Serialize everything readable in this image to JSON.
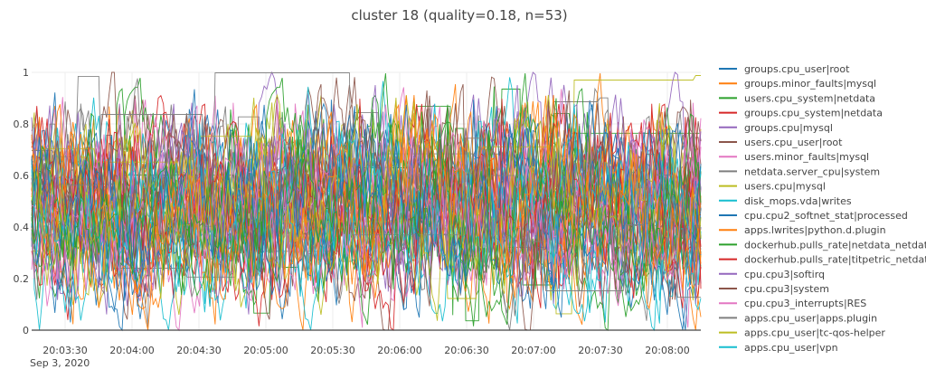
{
  "chart_data": {
    "type": "line",
    "title": "cluster 18 (quality=0.18, n=53)",
    "xlabel": "",
    "ylabel": "",
    "ylim": [
      0,
      1
    ],
    "yticks": [
      "0",
      "0.2",
      "0.4",
      "0.6",
      "0.8",
      "1"
    ],
    "xlim": [
      "20:03:15",
      "20:08:15"
    ],
    "xticks": [
      "20:03:30",
      "20:04:00",
      "20:04:30",
      "20:05:00",
      "20:05:30",
      "20:06:00",
      "20:06:30",
      "20:07:00",
      "20:07:30",
      "20:08:00"
    ],
    "xtick_secondary": "Sep 3, 2020",
    "grid": true,
    "legend_position": "right",
    "series": [
      {
        "name": "groups.cpu_user|root",
        "color": "#1f77b4"
      },
      {
        "name": "groups.minor_faults|mysql",
        "color": "#ff7f0e"
      },
      {
        "name": "users.cpu_system|netdata",
        "color": "#2ca02c"
      },
      {
        "name": "groups.cpu_system|netdata",
        "color": "#d62728"
      },
      {
        "name": "groups.cpu|mysql",
        "color": "#9467bd"
      },
      {
        "name": "users.cpu_user|root",
        "color": "#8c564b"
      },
      {
        "name": "users.minor_faults|mysql",
        "color": "#e377c2"
      },
      {
        "name": "netdata.server_cpu|system",
        "color": "#7f7f7f"
      },
      {
        "name": "users.cpu|mysql",
        "color": "#bcbd22"
      },
      {
        "name": "disk_mops.vda|writes",
        "color": "#17becf"
      },
      {
        "name": "cpu.cpu2_softnet_stat|processed",
        "color": "#1f77b4"
      },
      {
        "name": "apps.lwrites|python.d.plugin",
        "color": "#ff7f0e"
      },
      {
        "name": "dockerhub.pulls_rate|netdata_netdata",
        "color": "#2ca02c"
      },
      {
        "name": "dockerhub.pulls_rate|titpetric_netdata",
        "color": "#d62728"
      },
      {
        "name": "cpu.cpu3|softirq",
        "color": "#9467bd"
      },
      {
        "name": "cpu.cpu3|system",
        "color": "#8c564b"
      },
      {
        "name": "cpu.cpu3_interrupts|RES",
        "color": "#e377c2"
      },
      {
        "name": "apps.cpu_user|apps.plugin",
        "color": "#7f7f7f"
      },
      {
        "name": "apps.cpu_user|tc-qos-helper",
        "color": "#bcbd22"
      },
      {
        "name": "apps.cpu_user|vpn",
        "color": "#17becf"
      }
    ]
  }
}
